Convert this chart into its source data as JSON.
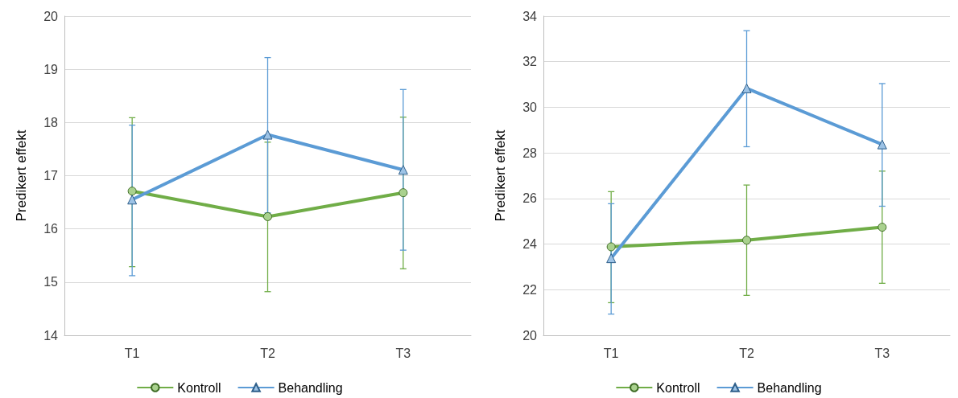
{
  "chart_data": [
    {
      "type": "line",
      "ylabel": "Predikert effekt",
      "categories": [
        "T1",
        "T2",
        "T3"
      ],
      "ylim": [
        14,
        20
      ],
      "yticks": [
        14,
        15,
        16,
        17,
        18,
        19,
        20
      ],
      "grid": "y",
      "legend": "bottom",
      "series": [
        {
          "name": "Kontroll",
          "color": "#70ad47",
          "marker": "circle",
          "values": [
            16.71,
            16.23,
            16.68
          ],
          "errors": [
            [
              15.29,
              18.09
            ],
            [
              14.82,
              17.63
            ],
            [
              15.25,
              18.1
            ]
          ]
        },
        {
          "name": "Behandling",
          "color": "#5b9bd5",
          "marker": "triangle",
          "values": [
            16.55,
            17.77,
            17.11
          ],
          "errors": [
            [
              15.12,
              17.95
            ],
            [
              16.3,
              19.22
            ],
            [
              15.6,
              18.62
            ]
          ]
        }
      ]
    },
    {
      "type": "line",
      "ylabel": "Predikert effekt",
      "categories": [
        "T1",
        "T2",
        "T3"
      ],
      "ylim": [
        20,
        34
      ],
      "yticks": [
        20,
        22,
        24,
        26,
        28,
        30,
        32,
        34
      ],
      "grid": "y",
      "legend": "bottom",
      "series": [
        {
          "name": "Kontroll",
          "color": "#70ad47",
          "marker": "circle",
          "values": [
            23.88,
            24.17,
            24.74
          ],
          "errors": [
            [
              21.43,
              26.3
            ],
            [
              21.75,
              26.59
            ],
            [
              22.28,
              27.2
            ]
          ]
        },
        {
          "name": "Behandling",
          "color": "#5b9bd5",
          "marker": "triangle",
          "values": [
            23.38,
            30.83,
            28.37
          ],
          "errors": [
            [
              20.93,
              25.77
            ],
            [
              28.27,
              33.36
            ],
            [
              25.66,
              31.04
            ]
          ]
        }
      ]
    }
  ]
}
